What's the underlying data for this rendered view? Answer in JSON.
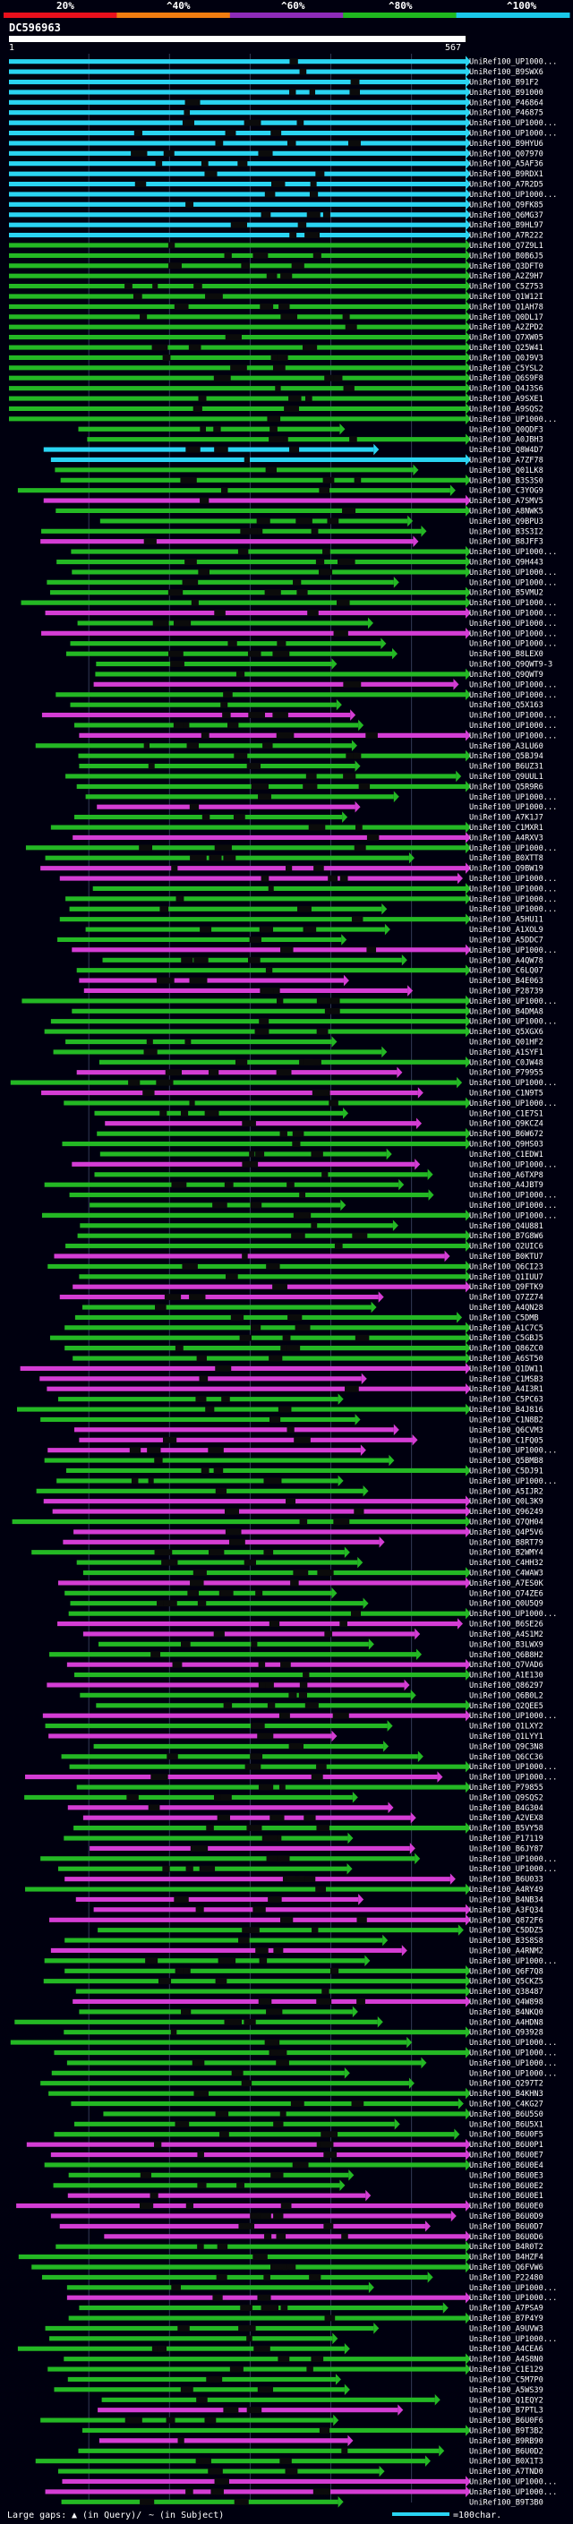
{
  "chart_data": {
    "type": "alignment-overview",
    "title": "DC596963",
    "query_length": 567,
    "axis": {
      "start_label": "1",
      "end_label": "567"
    },
    "identity_scale": {
      "ticks": [
        "20%",
        "^40%",
        "^60%",
        "^80%",
        "^100%"
      ],
      "colors": [
        "#e8101c",
        "#f07c10",
        "#8e2bb8",
        "#1fb81f",
        "#1ac8e8"
      ]
    },
    "legend": {
      "gaps_label": "Large gaps:",
      "in_query_label": "(in Query)/",
      "in_subject_label": "(in Subject)",
      "scale_label": "=100char."
    },
    "colors": {
      "cyan": "#2ad4f2",
      "green": "#24b824",
      "magenta": "#d43dd4",
      "black": "#0b0b0b",
      "grid": "#323a55"
    },
    "row_ids": [
      "UniRef100_UP1000...",
      "UniRef100_B9SWX6",
      "UniRef100_B91F2",
      "UniRef100_B91000",
      "UniRef100_P46864",
      "UniRef100_P46875",
      "UniRef100_UP1000...",
      "UniRef100_UP1000...",
      "UniRef100_B9HYU6",
      "UniRef100_Q07970",
      "UniRef100_A5AF36",
      "UniRef100_B9RDX1",
      "UniRef100_A7R2D5",
      "UniRef100_UP1000...",
      "UniRef100_Q9FK85",
      "UniRef100_Q6MG37",
      "UniRef100_B9HL97",
      "UniRef100_A7R222",
      "UniRef100_Q7Z9L1",
      "UniRef100_B0B6J5",
      "UniRef100_Q3DFT0",
      "UniRef100_A2Z9H7",
      "UniRef100_C5Z753",
      "UniRef100_Q1W12I",
      "UniRef100_Q1AH78",
      "UniRef100_Q0DL17",
      "UniRef100_A2ZPD2",
      "UniRef100_Q7XW05",
      "UniRef100_Q25W41",
      "UniRef100_Q0J9V3",
      "UniRef100_C5YSL2",
      "UniRef100_Q6S9F8",
      "UniRef100_Q4J3S6",
      "UniRef100_A9SXE1",
      "UniRef100_A9SQS2",
      "UniRef100_UP1000...",
      "UniRef100_Q0QDF3",
      "UniRef100_A0JBH3",
      "UniRef100_Q8W4D7",
      "UniRef100_A7ZF78",
      "UniRef100_Q01LK8",
      "UniRef100_B3S3S0",
      "UniRef100_C3YOG9",
      "UniRef100_A7SMV5",
      "UniRef100_A8NWK5",
      "UniRef100_Q9BPU3",
      "UniRef100_B3S3I2",
      "UniRef100_B8JFF3",
      "UniRef100_UP1000...",
      "UniRef100_Q9H443",
      "UniRef100_UP1000...",
      "UniRef100_UP1000...",
      "UniRef100_B5VMU2",
      "UniRef100_UP1000...",
      "UniRef100_UP1000...",
      "UniRef100_UP1000...",
      "UniRef100_UP1000...",
      "UniRef100_UP1000...",
      "UniRef100_B8LEX0",
      "UniRef100_Q9QWT9-3",
      "UniRef100_Q9QWT9",
      "UniRef100_UP1000...",
      "UniRef100_UP1000...",
      "UniRef100_Q5X163",
      "UniRef100_UP1000...",
      "UniRef100_UP1000...",
      "UniRef100_UP1000...",
      "UniRef100_A3LU60",
      "UniRef100_Q5BJ94",
      "UniRef100_B6UZ31",
      "UniRef100_Q9UUL1",
      "UniRef100_Q5R9R6",
      "UniRef100_UP1000...",
      "UniRef100_UP1000...",
      "UniRef100_A7K1J7",
      "UniRef100_C1MXR1",
      "UniRef100_A4RXV3",
      "UniRef100_UP1000...",
      "UniRef100_B0XTT8",
      "UniRef100_Q9BW19",
      "UniRef100_UP1000...",
      "UniRef100_UP1000...",
      "UniRef100_UP1000...",
      "UniRef100_UP1000...",
      "UniRef100_A5HU11",
      "UniRef100_A1XOL9",
      "UniRef100_A5DDC7",
      "UniRef100_UP1000...",
      "UniRef100_A4QW78",
      "UniRef100_C6LQ07",
      "UniRef100_B4E063",
      "UniRef100_P28739",
      "UniRef100_UP1000...",
      "UniRef100_B4DMA8",
      "UniRef100_UP1000...",
      "UniRef100_Q5XGX6",
      "UniRef100_Q01HF2",
      "UniRef100_A1SYF1",
      "UniRef100_C0JW48",
      "UniRef100_P79955",
      "UniRef100_UP1000...",
      "UniRef100_C1N9T5",
      "UniRef100_UP1000...",
      "UniRef100_C1E7S1",
      "UniRef100_Q9KCZ4",
      "UniRef100_B6W672",
      "UniRef100_Q9HS03",
      "UniRef100_C1EDW1",
      "UniRef100_UP1000...",
      "UniRef100_A6TXP8",
      "UniRef100_A4JBT9",
      "UniRef100_UP1000...",
      "UniRef100_UP1000...",
      "UniRef100_UP1000...",
      "UniRef100_Q4U881",
      "UniRef100_B7G8W6",
      "UniRef100_Q2UIC6",
      "UniRef100_B0KTU7",
      "UniRef100_Q6CI23",
      "UniRef100_Q1IUU7",
      "UniRef100_Q9FTK9",
      "UniRef100_Q7ZZ74",
      "UniRef100_A4QN28",
      "UniRef100_C5DMB",
      "UniRef100_A1C7C5",
      "UniRef100_C5GBJ5",
      "UniRef100_Q86ZC0",
      "UniRef100_A6ST50",
      "UniRef100_Q1DW11",
      "UniRef100_C1MSB3",
      "UniRef100_A4I3R1",
      "UniRef100_C5PC63",
      "UniRef100_B4J816",
      "UniRef100_C1N8B2",
      "UniRef100_Q6CVM3",
      "UniRef100_C1FQ05",
      "UniRef100_UP1000...",
      "UniRef100_Q5BMB8",
      "UniRef100_C5DJ91",
      "UniRef100_UP1000...",
      "UniRef100_A5IJR2",
      "UniRef100_Q0L3K9",
      "UniRef100_Q96249",
      "UniRef100_Q7QH04",
      "UniRef100_Q4P5V6",
      "UniRef100_B8RT79",
      "UniRef100_B2WMY4",
      "UniRef100_C4HH32",
      "UniRef100_C4WAW3",
      "UniRef100_A7ES0K",
      "UniRef100_Q74ZE6",
      "UniRef100_Q0U5Q9",
      "UniRef100_UP1000...",
      "UniRef100_B6SE26",
      "UniRef100_A4S1M2",
      "UniRef100_B3LWX9",
      "UniRef100_Q6B8H2",
      "UniRef100_Q7VAD6",
      "UniRef100_A1E130",
      "UniRef100_Q86297",
      "UniRef100_Q6B0L2",
      "UniRef100_Q2QEE5",
      "UniRef100_UP1000...",
      "UniRef100_Q1LXY2",
      "UniRef100_Q1LYY1",
      "UniRef100_Q9C3N8",
      "UniRef100_Q6CC36",
      "UniRef100_UP1000...",
      "UniRef100_UP1000...",
      "UniRef100_P79855",
      "UniRef100_Q9SQS2",
      "UniRef100_B4G304",
      "UniRef100_A2VEX8",
      "UniRef100_B5VY58",
      "UniRef100_P17119",
      "UniRef100_B6JY87",
      "UniRef100_UP1000...",
      "UniRef100_UP1000...",
      "UniRef100_B6U033",
      "UniRef100_A4RY49",
      "UniRef100_B4NB34",
      "UniRef100_A3FQ34",
      "UniRef100_Q872F6",
      "UniRef100_C5DDZ5",
      "UniRef100_B3S8S8",
      "UniRef100_A4RNM2",
      "UniRef100_UP1000...",
      "UniRef100_Q6F7Q8",
      "UniRef100_Q5CKZ5",
      "UniRef100_Q38487",
      "UniRef100_Q4W898",
      "UniRef100_B4NKQ0",
      "UniRef100_A4HDN8",
      "UniRef100_Q93928",
      "UniRef100_UP1000...",
      "UniRef100_UP1000...",
      "UniRef100_UP1000...",
      "UniRef100_UP1000...",
      "UniRef100_Q297T2",
      "UniRef100_B4KHN3",
      "UniRef100_C4KG27",
      "UniRef100_B6U5S0",
      "UniRef100_B6U5X1",
      "UniRef100_B6U0F5",
      "UniRef100_B6U0P1",
      "UniRef100_B6U0E7",
      "UniRef100_B6U0E4",
      "UniRef100_B6U0E3",
      "UniRef100_B6U0E2",
      "UniRef100_B6U0E1",
      "UniRef100_B6U0E0",
      "UniRef100_B6U0D9",
      "UniRef100_B6U0D7",
      "UniRef100_B6U0D6",
      "UniRef100_B4R0T2",
      "UniRef100_B4HZF4",
      "UniRef100_Q6FVW6",
      "UniRef100_P22480",
      "UniRef100_UP1000...",
      "UniRef100_UP1000...",
      "UniRef100_A7PSA9",
      "UniRef100_B7P4Y9",
      "UniRef100_A9UVW3",
      "UniRef100_UP1000...",
      "UniRef100_A4CEA6",
      "UniRef100_A4S8N0",
      "UniRef100_C1E129",
      "UniRef100_C5M7P0",
      "UniRef100_A5WS39",
      "UniRef100_Q1EQY2",
      "UniRef100_B7PTL3",
      "UniRef100_B6U0F6",
      "UniRef100_B9T3B2",
      "UniRef100_B9RB90",
      "UniRef100_B6U0D2",
      "UniRef100_B0X1T3",
      "UniRef100_A7TND0",
      "UniRef100_UP1000...",
      "UniRef100_UP1000...",
      "UniRef100_B9T3B0"
    ]
  }
}
